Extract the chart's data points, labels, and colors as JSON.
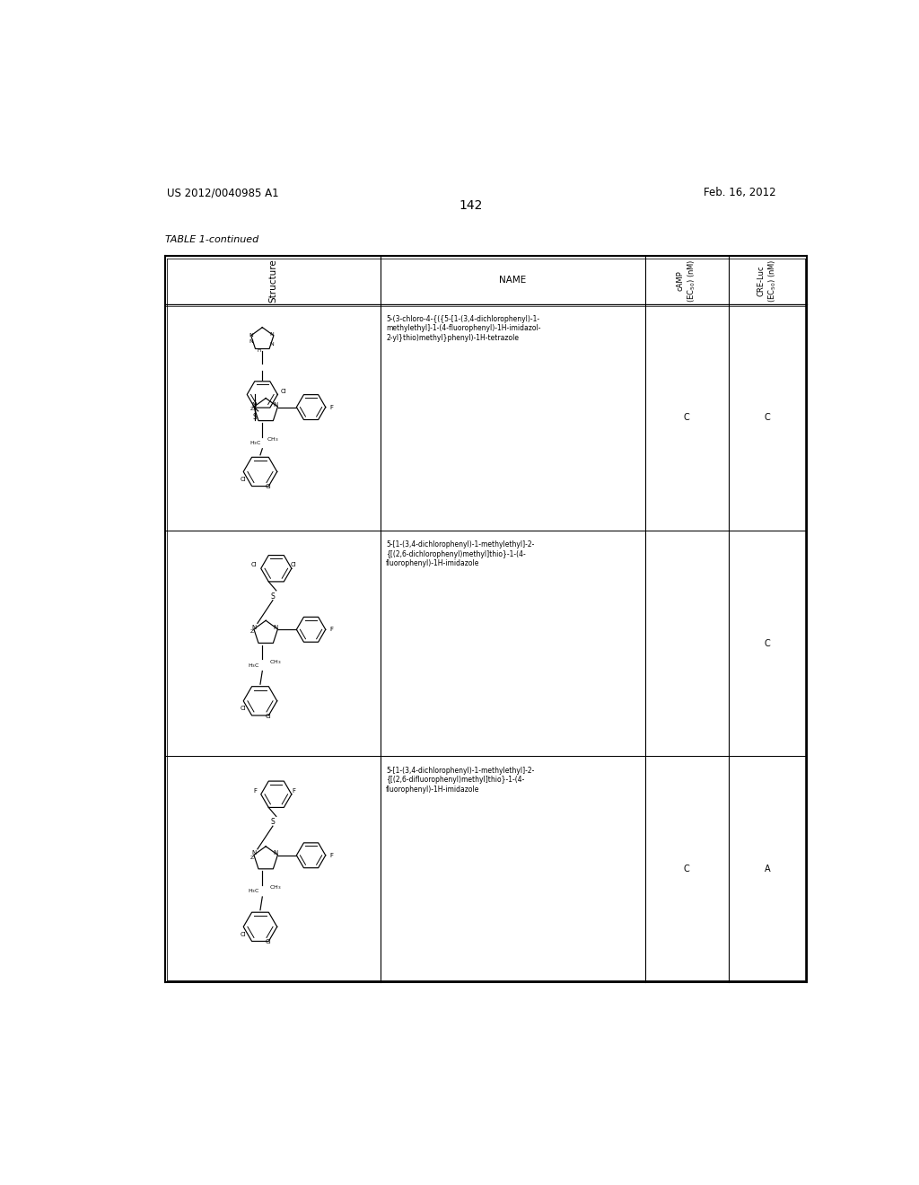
{
  "background_color": "#ffffff",
  "page_number": "142",
  "patent_number": "US 2012/0040985 A1",
  "patent_date": "Feb. 16, 2012",
  "table_title": "TABLE 1-continued",
  "row_names": [
    "5-(3-chloro-4-{({5-[1-(3,4-dichlorophenyl)-1-\nmethylethyl]-1-(4-fluorophenyl)-1H-imidazol-\n2-yl}thio)methyl}phenyl)-1H-tetrazole",
    "5-[1-(3,4-dichlorophenyl)-1-methylethyl]-2-\n{[(2,6-dichlorophenyl)methyl]thio}-1-(4-\nfluorophenyl)-1H-imidazole",
    "5-[1-(3,4-dichlorophenyl)-1-methylethyl]-2-\n{[(2,6-difluorophenyl)methyl]thio}-1-(4-\nfluorophenyl)-1H-imidazole"
  ],
  "row_camp": [
    "C",
    "",
    "C"
  ],
  "row_cre": [
    "C",
    "C",
    "A"
  ]
}
